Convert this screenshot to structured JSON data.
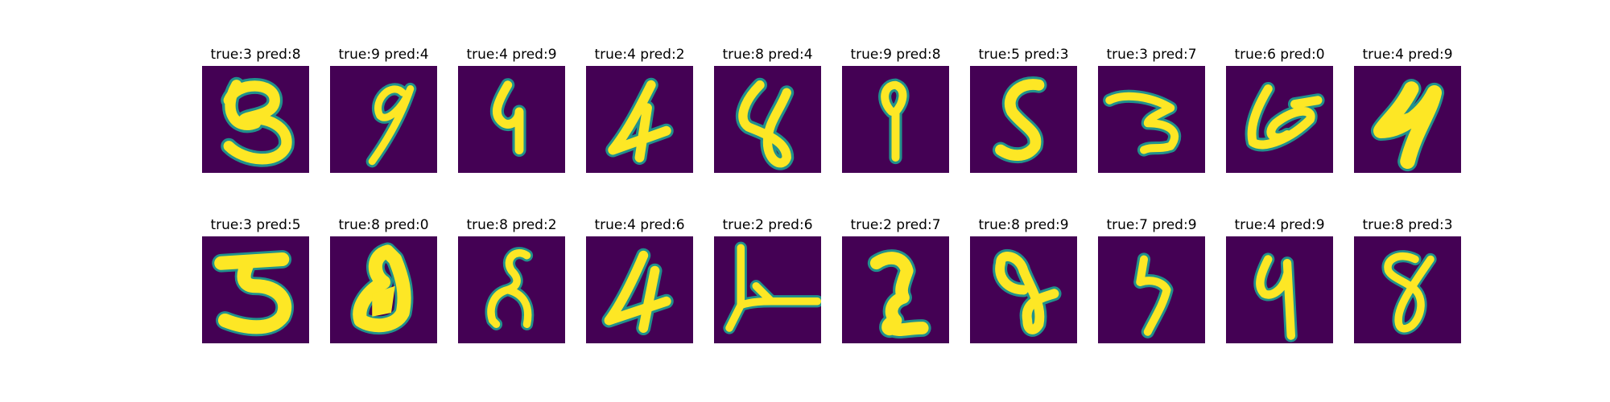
{
  "figure": {
    "colors": {
      "background": "#440154",
      "mid": "#21918c",
      "high": "#fde725"
    },
    "panels": [
      {
        "title": "true:3 pred:8",
        "digit_icon": "handwritten-digit-3-icon"
      },
      {
        "title": "true:9 pred:4",
        "digit_icon": "handwritten-digit-9-icon"
      },
      {
        "title": "true:4 pred:9",
        "digit_icon": "handwritten-digit-4-icon"
      },
      {
        "title": "true:4 pred:2",
        "digit_icon": "handwritten-digit-4-icon"
      },
      {
        "title": "true:8 pred:4",
        "digit_icon": "handwritten-digit-8-icon"
      },
      {
        "title": "true:9 pred:8",
        "digit_icon": "handwritten-digit-9-icon"
      },
      {
        "title": "true:5 pred:3",
        "digit_icon": "handwritten-digit-5-icon"
      },
      {
        "title": "true:3 pred:7",
        "digit_icon": "handwritten-digit-3-icon"
      },
      {
        "title": "true:6 pred:0",
        "digit_icon": "handwritten-digit-6-icon"
      },
      {
        "title": "true:4 pred:9",
        "digit_icon": "handwritten-digit-4-icon"
      },
      {
        "title": "true:3 pred:5",
        "digit_icon": "handwritten-digit-3-icon"
      },
      {
        "title": "true:8 pred:0",
        "digit_icon": "handwritten-digit-8-icon"
      },
      {
        "title": "true:8 pred:2",
        "digit_icon": "handwritten-digit-8-icon"
      },
      {
        "title": "true:4 pred:6",
        "digit_icon": "handwritten-digit-4-icon"
      },
      {
        "title": "true:2 pred:6",
        "digit_icon": "handwritten-digit-2-icon"
      },
      {
        "title": "true:2 pred:7",
        "digit_icon": "handwritten-digit-2-icon"
      },
      {
        "title": "true:8 pred:9",
        "digit_icon": "handwritten-digit-8-icon"
      },
      {
        "title": "true:7 pred:9",
        "digit_icon": "handwritten-digit-7-icon"
      },
      {
        "title": "true:4 pred:9",
        "digit_icon": "handwritten-digit-4-icon"
      },
      {
        "title": "true:8 pred:3",
        "digit_icon": "handwritten-digit-8-icon"
      }
    ]
  }
}
